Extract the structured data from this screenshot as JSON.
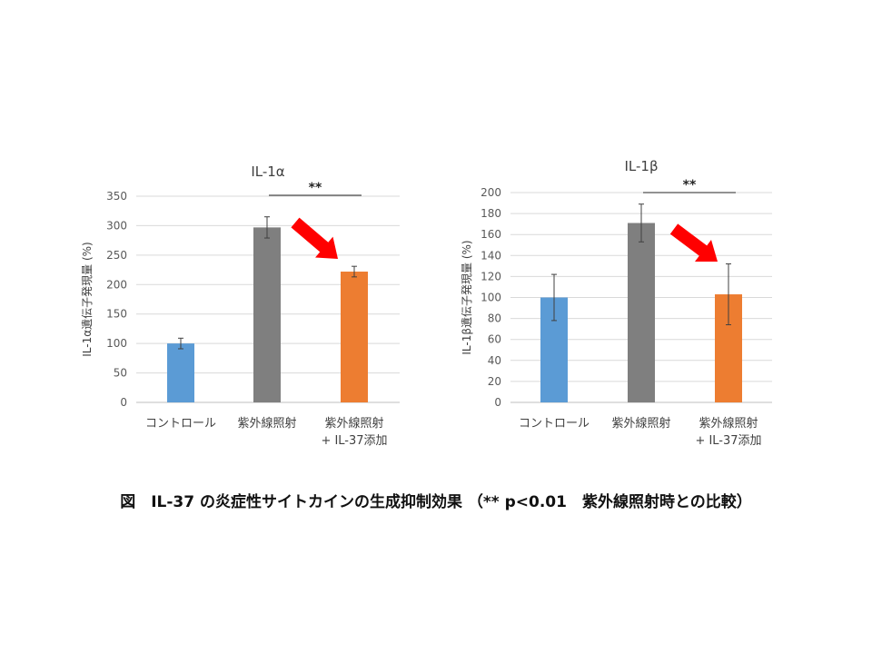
{
  "caption": "図　IL-37 の炎症性サイトカインの生成抑制効果 （** p<0.01　紫外線照射時との比較）",
  "chart_data": [
    {
      "type": "bar",
      "title": "IL-1α",
      "ylabel": "IL-1α遺伝子発現量 (%)",
      "xlabel": "",
      "categories": [
        [
          "コントロール"
        ],
        [
          "紫外線照射"
        ],
        [
          "紫外線照射",
          "+ IL-37添加"
        ]
      ],
      "values": [
        100,
        297,
        222
      ],
      "errors": [
        9,
        18,
        9
      ],
      "colors": [
        "#5b9bd5",
        "#7f7f7f",
        "#ed7d31"
      ],
      "ylim": [
        0,
        350
      ],
      "yticks": [
        "0",
        "50",
        "100",
        "150",
        "200",
        "250",
        "300",
        "350"
      ],
      "grid": true,
      "significance": {
        "label": "**",
        "from": 1,
        "to": 2
      },
      "arrow_color": "#ff0000"
    },
    {
      "type": "bar",
      "title": "IL-1β",
      "ylabel": "IL-1β遺伝子発現量 (%)",
      "xlabel": "",
      "categories": [
        [
          "コントロール"
        ],
        [
          "紫外線照射"
        ],
        [
          "紫外線照射",
          "+ IL-37添加"
        ]
      ],
      "values": [
        100,
        171,
        103
      ],
      "errors": [
        22,
        18,
        29
      ],
      "colors": [
        "#5b9bd5",
        "#7f7f7f",
        "#ed7d31"
      ],
      "ylim": [
        0,
        200
      ],
      "yticks": [
        "0",
        "20",
        "40",
        "60",
        "80",
        "100",
        "120",
        "140",
        "160",
        "180",
        "200"
      ],
      "grid": true,
      "significance": {
        "label": "**",
        "from": 1,
        "to": 2
      },
      "arrow_color": "#ff0000"
    }
  ]
}
